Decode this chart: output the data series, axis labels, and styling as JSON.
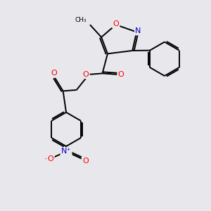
{
  "bg_color": "#e8e8ec",
  "atom_colors": {
    "C": "#000000",
    "O": "#ff0000",
    "N": "#0000cc"
  },
  "bond_color": "#000000",
  "bond_width": 1.4,
  "figsize": [
    3.0,
    3.0
  ],
  "dpi": 100
}
